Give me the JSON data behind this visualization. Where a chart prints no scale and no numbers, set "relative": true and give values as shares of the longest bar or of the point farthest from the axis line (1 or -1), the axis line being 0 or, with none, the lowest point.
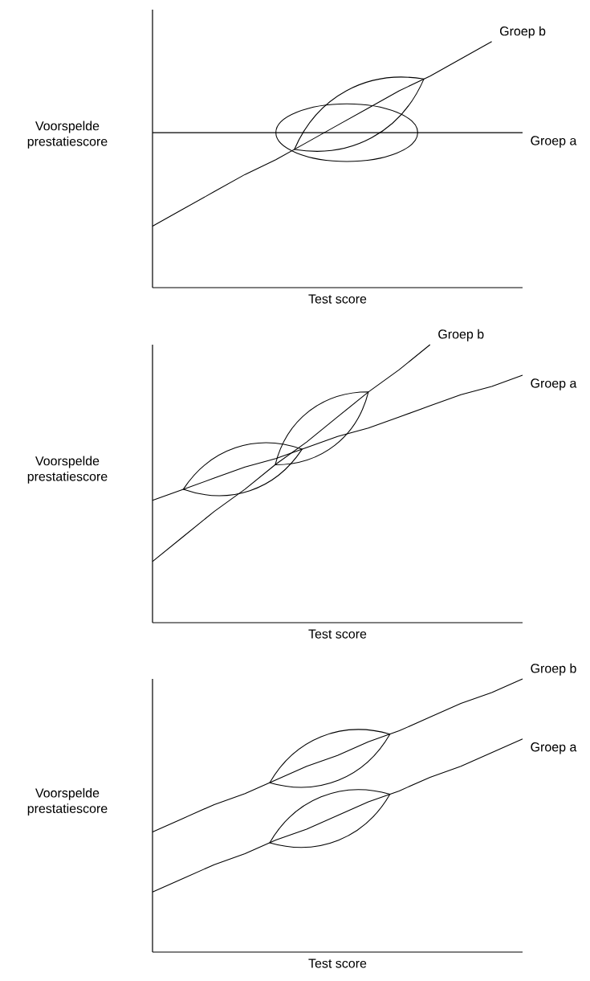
{
  "chart_data": [
    {
      "type": "line",
      "xlabel": "Test score",
      "ylabel": "Voorspelde prestatiescore",
      "relative": true,
      "categories": [
        null,
        null,
        null,
        null,
        null,
        null,
        null,
        null,
        null,
        null,
        null,
        null,
        null
      ],
      "series": [
        {
          "name": "Groep a",
          "color": "#000000",
          "values": [
            0.63,
            0.63,
            0.63,
            0.63,
            0.63,
            0.63,
            0.63,
            0.63,
            0.63,
            0.63,
            0.63,
            0.63,
            0.63
          ]
        },
        {
          "name": "Groep b",
          "color": "#000000",
          "values": [
            0.25,
            0.32,
            0.39,
            0.46,
            0.52,
            0.59,
            0.66,
            0.73,
            0.8,
            0.86,
            0.93,
            1.0,
            null
          ]
        }
      ]
    },
    {
      "type": "line",
      "xlabel": "Test score",
      "ylabel": "Voorspelde prestatiescore",
      "relative": true,
      "categories": [
        null,
        null,
        null,
        null,
        null,
        null,
        null,
        null,
        null,
        null,
        null,
        null,
        null
      ],
      "series": [
        {
          "name": "Groep a",
          "color": "#000000",
          "values": [
            0.44,
            0.48,
            0.52,
            0.56,
            0.59,
            0.63,
            0.67,
            0.7,
            0.74,
            0.78,
            0.82,
            0.85,
            0.89
          ]
        },
        {
          "name": "Groep b",
          "color": "#000000",
          "values": [
            0.22,
            0.31,
            0.4,
            0.48,
            0.57,
            0.65,
            0.74,
            0.83,
            0.91,
            1.0,
            null,
            null,
            null
          ]
        }
      ]
    },
    {
      "type": "line",
      "xlabel": "Test score",
      "ylabel": "Voorspelde prestatiescore",
      "relative": true,
      "categories": [
        null,
        null,
        null,
        null,
        null,
        null,
        null,
        null,
        null,
        null,
        null,
        null,
        null
      ],
      "series": [
        {
          "name": "Groep a",
          "color": "#000000",
          "values": [
            0.22,
            0.27,
            0.32,
            0.36,
            0.41,
            0.45,
            0.5,
            0.55,
            0.59,
            0.64,
            0.68,
            0.73,
            0.78
          ]
        },
        {
          "name": "Groep b",
          "color": "#000000",
          "values": [
            0.44,
            0.49,
            0.54,
            0.58,
            0.63,
            0.68,
            0.72,
            0.77,
            0.81,
            0.86,
            0.91,
            0.95,
            1.0
          ]
        }
      ]
    }
  ]
}
